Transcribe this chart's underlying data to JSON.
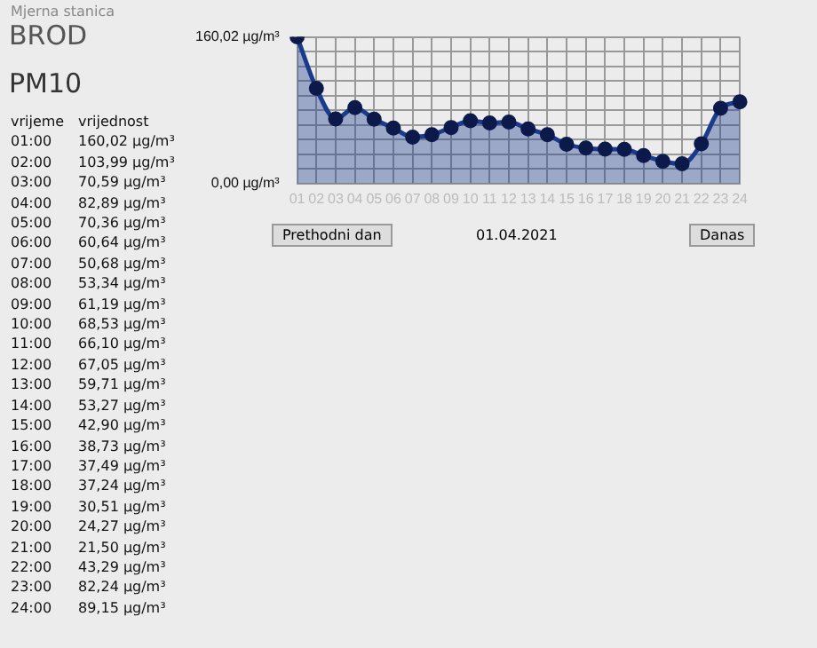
{
  "chart_data": {
    "type": "area",
    "title": "BROD",
    "subtitle": "PM10",
    "annotations": [
      "Mjerna stanica",
      "vrijeme",
      "vrijednost",
      "Prethodni dan",
      "01.04.2021",
      "Danas",
      "01:00",
      "02:00",
      "03:00",
      "04:00",
      "05:00",
      "06:00",
      "07:00",
      "08:00",
      "09:00",
      "10:00",
      "11:00",
      "12:00",
      "13:00",
      "14:00",
      "15:00",
      "16:00",
      "17:00",
      "18:00",
      "19:00",
      "20:00",
      "21:00",
      "22:00",
      "23:00",
      "24:00",
      "160,02 µg/m³",
      "103,99 µg/m³",
      "70,59 µg/m³",
      "82,89 µg/m³",
      "70,36 µg/m³",
      "60,64 µg/m³",
      "50,68 µg/m³",
      "53,34 µg/m³",
      "61,19 µg/m³",
      "68,53 µg/m³",
      "66,10 µg/m³",
      "67,05 µg/m³",
      "59,71 µg/m³",
      "53,27 µg/m³",
      "42,90 µg/m³",
      "38,73 µg/m³",
      "37,49 µg/m³",
      "37,24 µg/m³",
      "30,51 µg/m³",
      "24,27 µg/m³",
      "21,50 µg/m³",
      "43,29 µg/m³",
      "82,24 µg/m³",
      "89,15 µg/m³"
    ],
    "categories": [
      "01",
      "02",
      "03",
      "04",
      "05",
      "06",
      "07",
      "08",
      "09",
      "10",
      "11",
      "12",
      "13",
      "14",
      "15",
      "16",
      "17",
      "18",
      "19",
      "20",
      "21",
      "22",
      "23",
      "24"
    ],
    "series": [
      {
        "color": "#1a3a8c",
        "values": [
          160.02,
          103.99,
          70.59,
          82.89,
          70.36,
          60.64,
          50.68,
          53.34,
          61.19,
          68.53,
          66.1,
          67.05,
          59.71,
          53.27,
          42.9,
          38.73,
          37.49,
          37.24,
          30.51,
          24.27,
          21.5,
          43.29,
          82.24,
          89.15
        ]
      }
    ],
    "ylim": [
      0,
      160.02
    ],
    "yticks": [
      {
        "value": 0,
        "label": "0,00 µg/m³"
      },
      {
        "value": 16,
        "label": null
      },
      {
        "value": 32,
        "label": null
      },
      {
        "value": 48,
        "label": null
      },
      {
        "value": 64,
        "label": null
      },
      {
        "value": 80,
        "label": null
      },
      {
        "value": 96,
        "label": null
      },
      {
        "value": 112,
        "label": null
      },
      {
        "value": 128,
        "label": null
      },
      {
        "value": 144,
        "label": null
      },
      {
        "value": 160.02,
        "label": "160,02 µg/m³"
      }
    ],
    "grid": true,
    "marker": "circle",
    "legend": false
  }
}
